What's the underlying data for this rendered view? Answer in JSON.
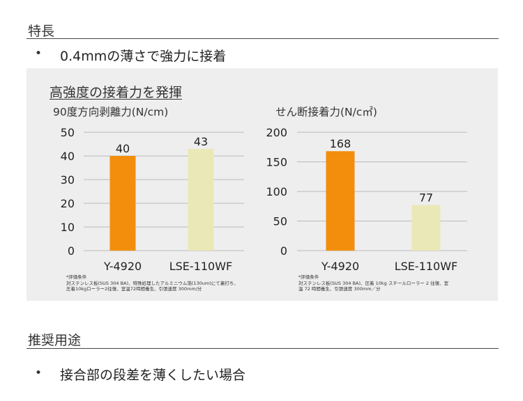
{
  "sections": [
    {
      "title": "特長",
      "bullet": "0.4mmの薄さで強力に接着"
    },
    {
      "title": "推奨用途",
      "bullet": "接合部の段差を薄くしたい場合"
    }
  ],
  "bullet_symbol": "•",
  "panel": {
    "title": "高強度の接着力を発揮",
    "notes": [
      [
        "*評価条件",
        "対ステンレス板(SUS 304 BA)、特殊処理したアルミニウム箔(130um)にて裏打ち、",
        "圧着10kgローラー2往復、室温72時間養生、引張速度 300mm/分"
      ],
      [
        "*評価条件",
        "対ステンレス板(SUS 304 BA)、圧着 10kg スチールローラー 2 往復、室",
        "温 72 時間養生、引張速度 300mm／分"
      ]
    ]
  },
  "colors": {
    "orange": "#f28e0c",
    "cream": "#ebe8b8",
    "grid": "#bbbbbb",
    "panel_bg": "#eeeeee"
  },
  "chart_data": [
    {
      "type": "bar",
      "title": "90度方向剥離力(N/cm)",
      "categories": [
        "Y-4920",
        "LSE-110WF"
      ],
      "values": [
        40,
        43
      ],
      "bar_colors": [
        "#f28e0c",
        "#ebe8b8"
      ],
      "ylim": [
        0,
        50
      ],
      "yticks": [
        0,
        10,
        20,
        30,
        40,
        50
      ],
      "grid": true
    },
    {
      "type": "bar",
      "title": "せん断接着力(N/c㎡)",
      "categories": [
        "Y-4920",
        "LSE-110WF"
      ],
      "values": [
        168,
        77
      ],
      "bar_colors": [
        "#f28e0c",
        "#ebe8b8"
      ],
      "ylim": [
        0,
        200
      ],
      "yticks": [
        0,
        50,
        100,
        150,
        200
      ],
      "grid": true
    }
  ]
}
